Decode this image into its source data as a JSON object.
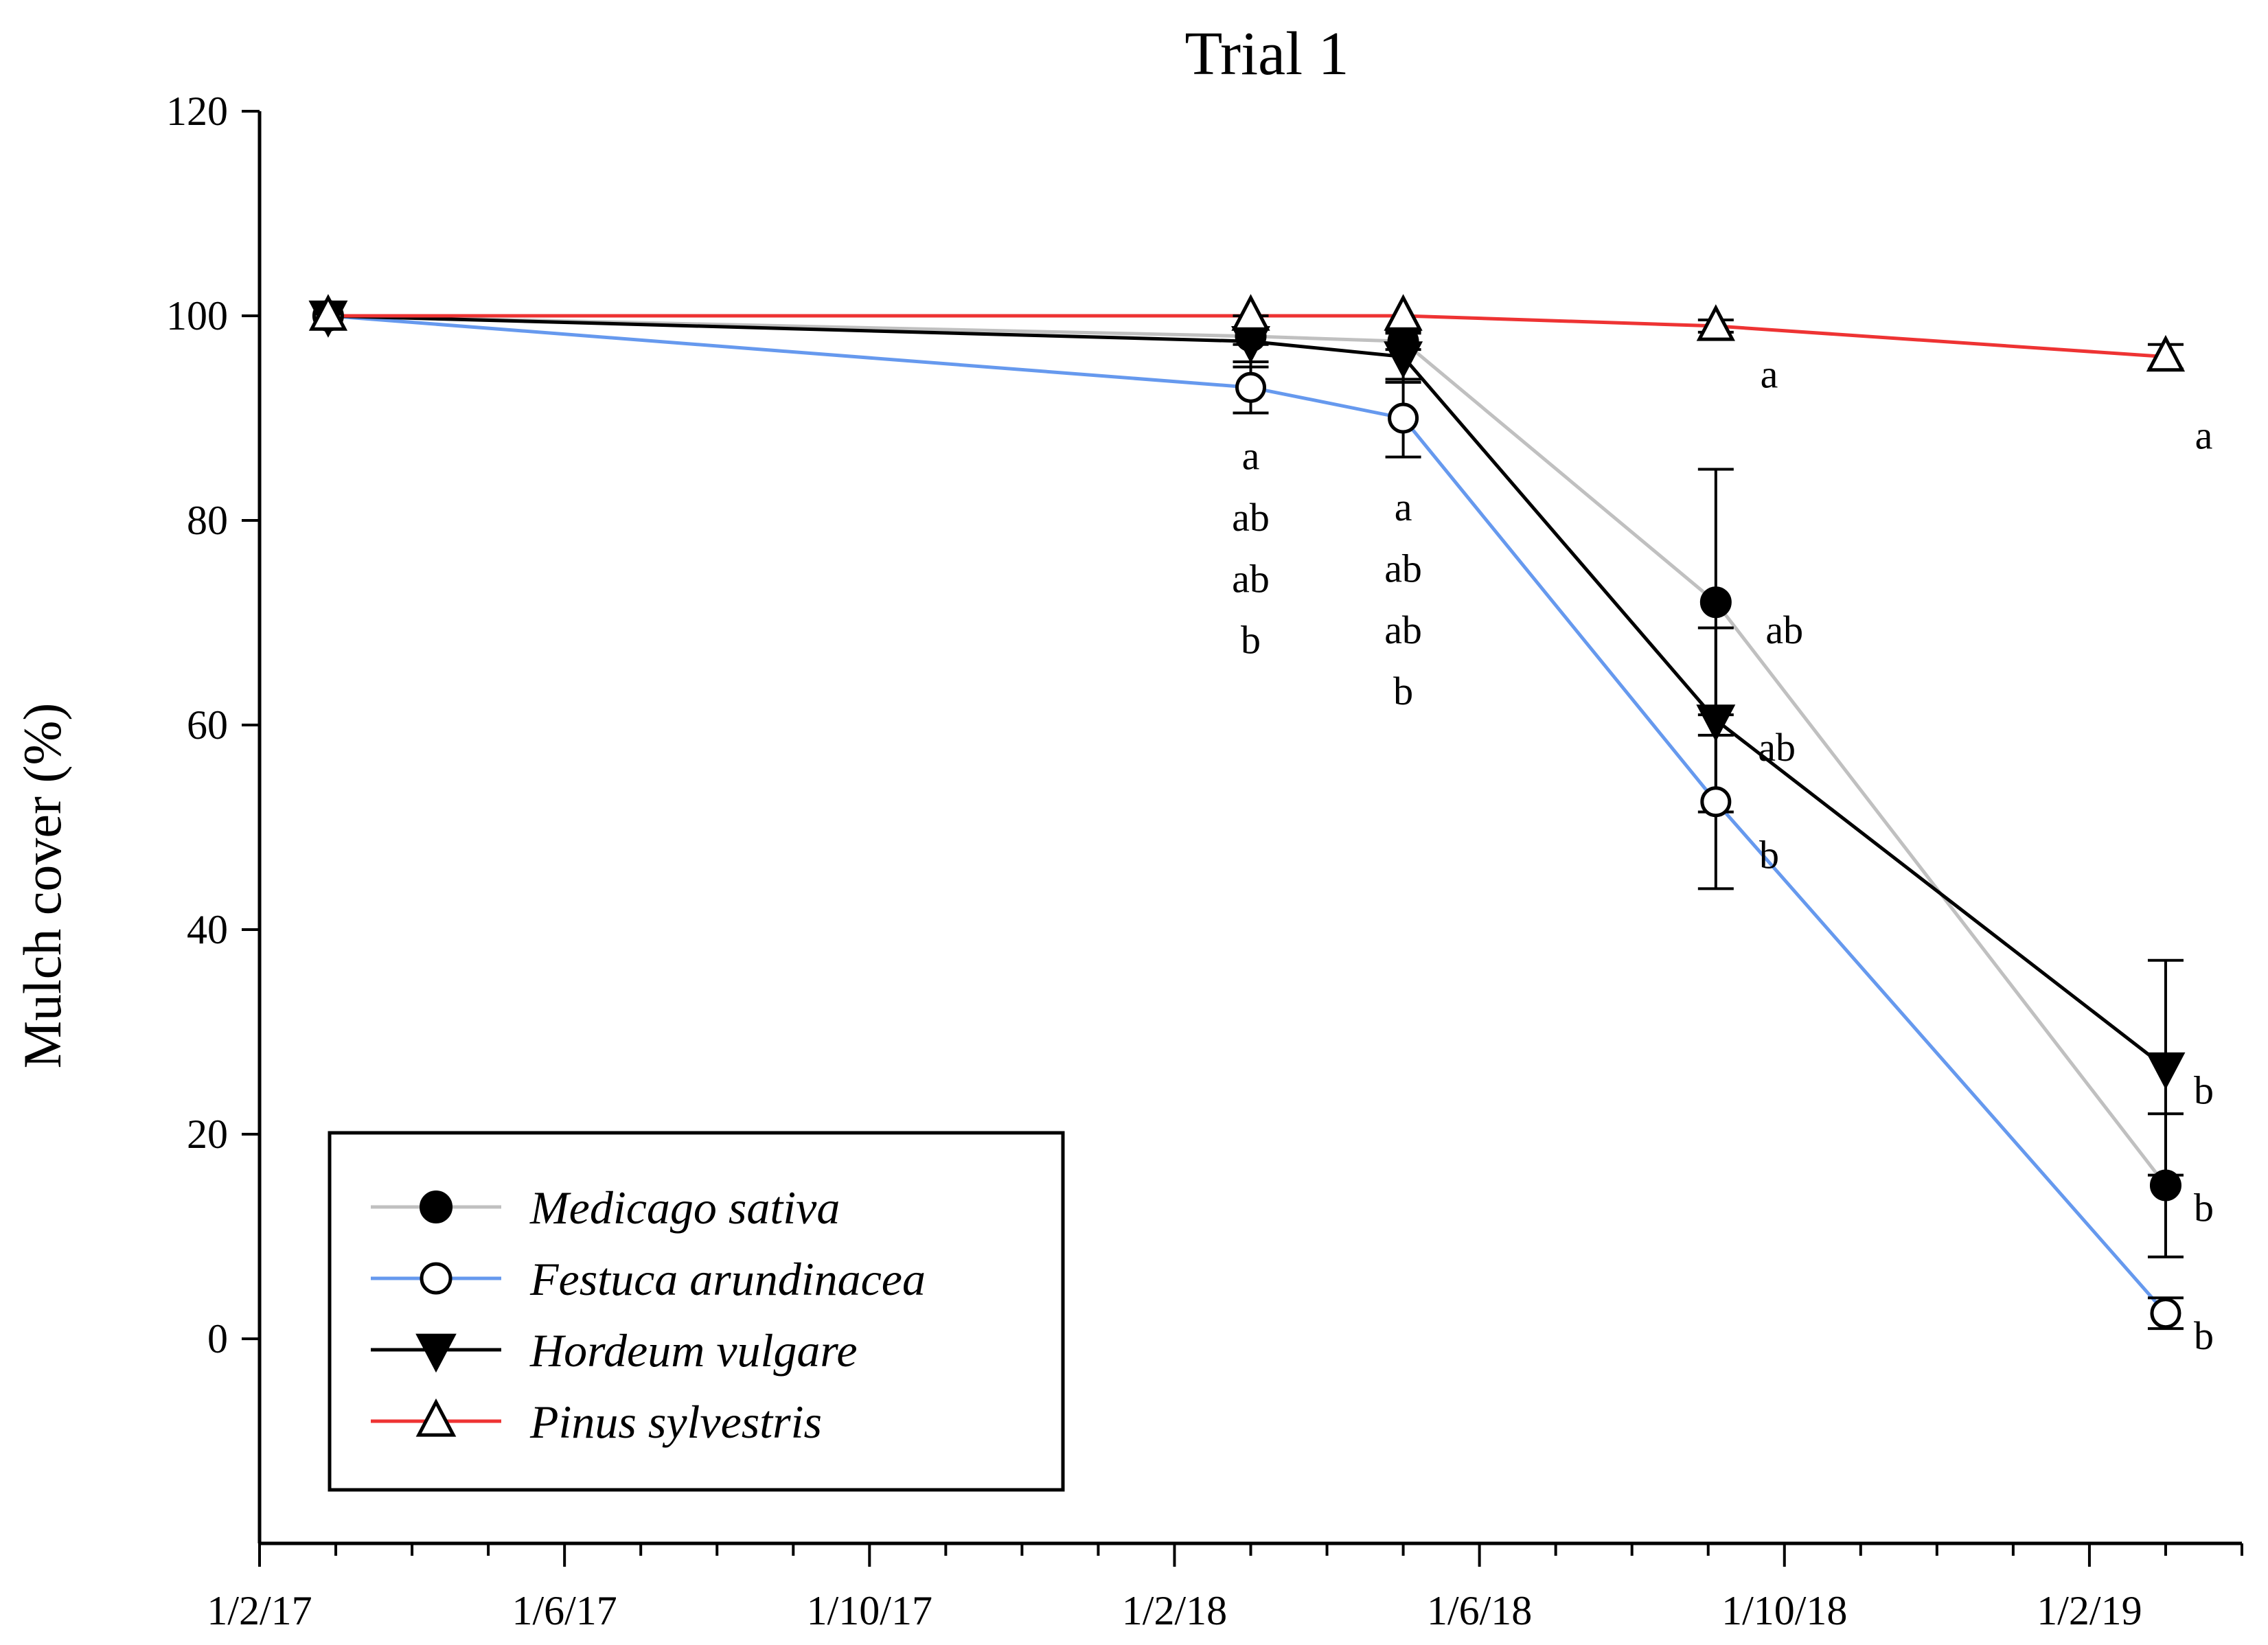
{
  "chart_data": {
    "type": "line",
    "title": "Trial 1",
    "xlabel": "",
    "ylabel": "Mulch cover (%)",
    "ylim": [
      -20,
      120
    ],
    "yticks": [
      0,
      20,
      40,
      60,
      80,
      100,
      120
    ],
    "xlim_months": [
      0,
      26
    ],
    "xticks": [
      {
        "label": "1/2/17",
        "month": 0
      },
      {
        "label": "1/6/17",
        "month": 4
      },
      {
        "label": "1/10/17",
        "month": 8
      },
      {
        "label": "1/2/18",
        "month": 12
      },
      {
        "label": "1/6/18",
        "month": 16
      },
      {
        "label": "1/10/18",
        "month": 20
      },
      {
        "label": "1/2/19",
        "month": 24
      }
    ],
    "x_months": [
      0.9,
      13.0,
      15.0,
      19.1,
      25.0
    ],
    "series": [
      {
        "name": "Medicago sativa",
        "line_color": "#c0c0c0",
        "marker": "filled-circle",
        "values": [
          100,
          98,
          97.5,
          72,
          15
        ],
        "errors": [
          0,
          0.8,
          0.8,
          13,
          7
        ]
      },
      {
        "name": "Festuca arundinacea",
        "line_color": "#6699ee",
        "marker": "open-circle",
        "values": [
          100,
          93,
          90,
          52.5,
          2.5
        ],
        "errors": [
          0,
          2.5,
          3.8,
          8.5,
          1.5
        ]
      },
      {
        "name": "Hordeum vulgare",
        "line_color": "#000000",
        "marker": "filled-triangle-down",
        "values": [
          100,
          97.5,
          96,
          60.5,
          26.5
        ],
        "errors": [
          0,
          2.5,
          2.5,
          9,
          10.5
        ]
      },
      {
        "name": "Pinus sylvestris",
        "line_color": "#ee3333",
        "marker": "open-triangle-up",
        "values": [
          100,
          100,
          100,
          99,
          96
        ],
        "errors": [
          0,
          0,
          0,
          0.6,
          1.2
        ]
      }
    ],
    "annotations": [
      {
        "text": "a",
        "month": 13.0,
        "y": 85
      },
      {
        "text": "ab",
        "month": 13.0,
        "y": 79
      },
      {
        "text": "ab",
        "month": 13.0,
        "y": 73
      },
      {
        "text": "b",
        "month": 13.0,
        "y": 67
      },
      {
        "text": "a",
        "month": 15.0,
        "y": 80
      },
      {
        "text": "ab",
        "month": 15.0,
        "y": 74
      },
      {
        "text": "ab",
        "month": 15.0,
        "y": 68
      },
      {
        "text": "b",
        "month": 15.0,
        "y": 62
      },
      {
        "text": "a",
        "month": 19.8,
        "y": 93
      },
      {
        "text": "ab",
        "month": 20.0,
        "y": 68
      },
      {
        "text": "ab",
        "month": 19.9,
        "y": 56.5
      },
      {
        "text": "b",
        "month": 19.8,
        "y": 46
      },
      {
        "text": "a",
        "month": 25.5,
        "y": 87
      },
      {
        "text": "b",
        "month": 25.5,
        "y": 23
      },
      {
        "text": "b",
        "month": 25.5,
        "y": 11.5
      },
      {
        "text": "b",
        "month": 25.5,
        "y": -1
      }
    ],
    "legend": {
      "placement": "bottom-left"
    }
  }
}
